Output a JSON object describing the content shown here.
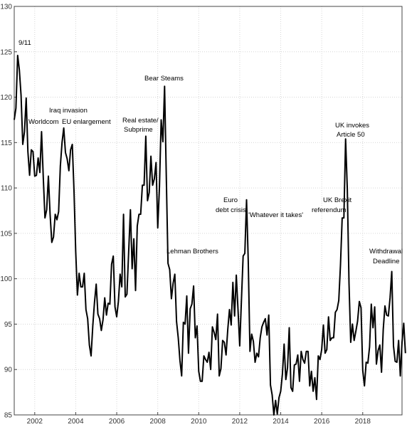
{
  "chart_data": {
    "type": "line",
    "title": "",
    "xlabel": "",
    "ylabel": "",
    "xlim": [
      2001.0,
      2019.917
    ],
    "ylim": [
      85,
      130
    ],
    "grid": true,
    "x_ticks": [
      2002,
      2004,
      2006,
      2008,
      2010,
      2012,
      2014,
      2016,
      2018
    ],
    "y_ticks": [
      85,
      90,
      95,
      100,
      105,
      110,
      115,
      120,
      125,
      130
    ],
    "x_tick_labels": [
      "2002",
      "2004",
      "2006",
      "2008",
      "2010",
      "2012",
      "2014",
      "2016",
      "2018"
    ],
    "y_tick_labels": [
      "85",
      "90",
      "95",
      "100",
      "105",
      "110",
      "115",
      "120",
      "125",
      "130"
    ],
    "line_color": "#000000",
    "series": [
      {
        "x_start": 2001.0,
        "x_step": 0.08333,
        "values": [
          117.5,
          118.8,
          124.6,
          123.0,
          120.2,
          114.8,
          116.2,
          119.9,
          114.0,
          111.4,
          114.2,
          114.0,
          111.3,
          111.4,
          113.3,
          111.7,
          116.2,
          111.2,
          106.7,
          107.6,
          111.3,
          107.1,
          104.0,
          104.6,
          107.1,
          106.5,
          107.4,
          112.4,
          115.0,
          116.6,
          113.9,
          113.2,
          111.9,
          114.2,
          114.8,
          109.7,
          103.0,
          98.2,
          100.6,
          99.1,
          99.1,
          100.6,
          96.6,
          95.6,
          92.7,
          91.5,
          94.8,
          97.4,
          99.4,
          96.1,
          95.6,
          94.3,
          95.5,
          97.9,
          96.0,
          97.3,
          97.2,
          101.6,
          102.5,
          96.9,
          95.8,
          97.5,
          100.5,
          99.1,
          107.1,
          98.0,
          98.3,
          102.9,
          107.6,
          101.1,
          104.4,
          98.7,
          105.8,
          107.1,
          107.1,
          110.3,
          110.3,
          115.7,
          108.6,
          109.5,
          113.5,
          110.3,
          111.0,
          112.8,
          105.6,
          110.1,
          117.5,
          115.1,
          121.2,
          111.3,
          101.7,
          101.0,
          97.8,
          99.5,
          100.5,
          95.3,
          93.5,
          91.0,
          89.3,
          95.2,
          95.0,
          98.1,
          91.8,
          96.7,
          97.2,
          99.2,
          93.5,
          94.8,
          89.8,
          88.7,
          88.7,
          91.5,
          91.1,
          90.8,
          91.9,
          90.0,
          94.7,
          94.1,
          93.3,
          96.1,
          89.3,
          90.1,
          93.2,
          93.0,
          91.6,
          94.4,
          96.6,
          94.9,
          99.6,
          95.9,
          100.4,
          96.6,
          92.6,
          97.6,
          102.5,
          102.8,
          108.7,
          101.9,
          92.0,
          93.9,
          93.1,
          90.8,
          91.8,
          91.4,
          93.5,
          94.7,
          95.2,
          95.6,
          93.8,
          96.0,
          88.3,
          87.2,
          85.0,
          86.6,
          85.1,
          86.9,
          87.6,
          89.5,
          92.8,
          88.9,
          90.2,
          94.6,
          88.0,
          87.6,
          90.5,
          90.6,
          91.6,
          88.7,
          92.0,
          91.1,
          90.7,
          92.0,
          92.0,
          88.2,
          89.8,
          87.6,
          89.1,
          86.7,
          91.5,
          91.1,
          92.2,
          94.9,
          91.8,
          92.2,
          95.8,
          93.2,
          93.5,
          93.5,
          96.3,
          96.6,
          97.6,
          101.5,
          106.7,
          106.7,
          115.4,
          109.9,
          99.5,
          93.0,
          95.0,
          93.2,
          94.2,
          95.3,
          97.5,
          96.8,
          89.9,
          88.2,
          90.8,
          90.7,
          92.5,
          97.2,
          94.6,
          96.9,
          90.6,
          92.1,
          92.7,
          89.7,
          94.4,
          97.0,
          96.0,
          95.9,
          97.9,
          100.8,
          92.6,
          90.9,
          90.8,
          93.2,
          89.3,
          93.0,
          95.1,
          91.8
        ]
      }
    ],
    "annotations": [
      {
        "text": "9/11",
        "x": 2001.25,
        "y": 124.6
      },
      {
        "text": "Worldcom",
        "x": 2001.75,
        "y": 116.7
      },
      {
        "text": "Iraq invasion",
        "x": 2003.0,
        "y": 118.0
      },
      {
        "text": "EU enlargement",
        "x": 2003.5,
        "y": 116.6
      },
      {
        "text": "Real estate/",
        "x": 2007.25,
        "y": 116.8
      },
      {
        "text": "Subprime",
        "x": 2007.25,
        "y": 115.7
      },
      {
        "text": "Bear Steams",
        "x": 2008.17,
        "y": 121.2
      },
      {
        "text": "Lehman Brothers",
        "x": 2008.75,
        "y": 101.7
      },
      {
        "text": "Euro",
        "x": 2012.33,
        "y": 108.7
      },
      {
        "text": "debt crisis",
        "x": 2012.33,
        "y": 108.7
      },
      {
        "text": "'Whatever it takes'",
        "x": 2012.58,
        "y": 103.0
      },
      {
        "text": "UK Brexit",
        "x": 2016.5,
        "y": 106.7
      },
      {
        "text": "referendum",
        "x": 2016.5,
        "y": 106.7
      },
      {
        "text": "UK invokes",
        "x": 2017.25,
        "y": 115.4
      },
      {
        "text": "Article 50",
        "x": 2017.25,
        "y": 115.4
      },
      {
        "text": "Withdrawal",
        "x": 2019.5,
        "y": 100.8
      },
      {
        "text": "Deadline",
        "x": 2019.5,
        "y": 100.8
      }
    ]
  }
}
